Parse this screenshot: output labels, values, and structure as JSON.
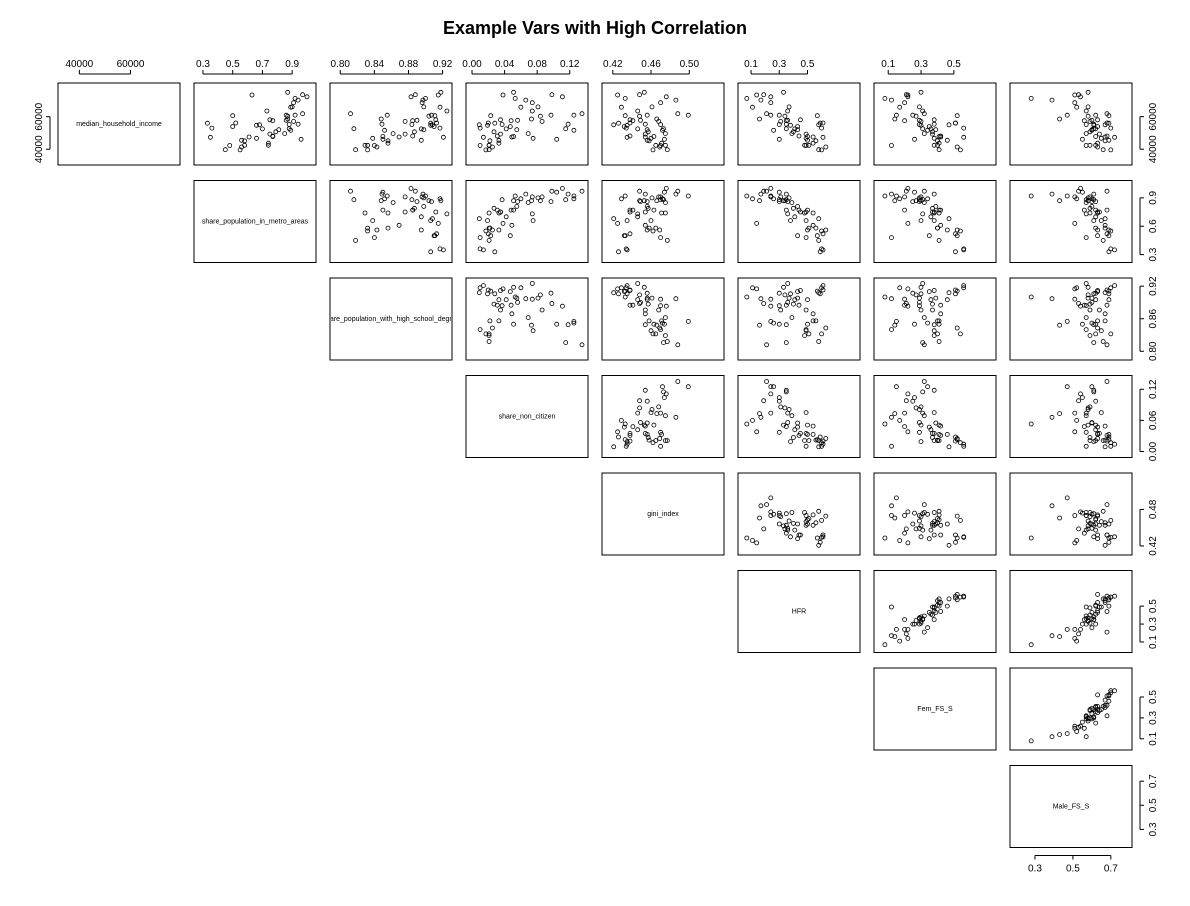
{
  "chart_data": {
    "type": "scatter",
    "title": "Example Vars with High Correlation",
    "variables": [
      {
        "name": "median_household_income",
        "range": [
          34000,
          77000
        ],
        "ticks": [
          40000,
          60000
        ],
        "tick_labels": [
          "40000",
          "60000"
        ]
      },
      {
        "name": "share_population_in_metro_areas",
        "range": [
          0.28,
          1.02
        ],
        "ticks": [
          0.3,
          0.5,
          0.7,
          0.9
        ],
        "tick_labels": [
          "0.3",
          "0.5",
          "0.7",
          "0.9"
        ],
        "ticks_right": [
          0.3,
          0.6,
          0.9
        ],
        "tick_labels_right": [
          "0.3",
          "0.6",
          "0.9"
        ]
      },
      {
        "name": "share_population_with_high_school_degree",
        "range": [
          0.795,
          0.924
        ],
        "ticks": [
          0.8,
          0.84,
          0.88,
          0.92
        ],
        "tick_labels": [
          "0.80",
          "0.84",
          "0.88",
          "0.92"
        ],
        "ticks_right": [
          0.8,
          0.86,
          0.92
        ],
        "tick_labels_right": [
          "0.80",
          "0.86",
          "0.92"
        ]
      },
      {
        "name": "share_non_citizen",
        "range": [
          0.0,
          0.135
        ],
        "ticks": [
          0.0,
          0.04,
          0.08,
          0.12
        ],
        "tick_labels": [
          "0.00",
          "0.04",
          "0.08",
          "0.12"
        ],
        "ticks_right": [
          0.0,
          0.06,
          0.12
        ],
        "tick_labels_right": [
          "0.00",
          "0.06",
          "0.12"
        ]
      },
      {
        "name": "gini_index",
        "range": [
          0.415,
          0.53
        ],
        "ticks": [
          0.42,
          0.46,
          0.5
        ],
        "tick_labels": [
          "0.42",
          "0.46",
          "0.50"
        ],
        "ticks_right": [
          0.42,
          0.48
        ],
        "tick_labels_right": [
          "0.42",
          "0.48"
        ]
      },
      {
        "name": "HFR",
        "range": [
          0.05,
          0.83
        ],
        "ticks": [
          0.1,
          0.3,
          0.5
        ],
        "tick_labels": [
          "0.1",
          "0.3",
          "0.5"
        ],
        "ticks_right": [
          0.1,
          0.3,
          0.5
        ],
        "tick_labels_right": [
          "0.1",
          "0.3",
          "0.5"
        ]
      },
      {
        "name": "Fem_FS_S",
        "range": [
          0.05,
          0.72
        ],
        "ticks": [
          0.1,
          0.3,
          0.5
        ],
        "tick_labels": [
          "0.1",
          "0.3",
          "0.5"
        ],
        "ticks_right": [
          0.1,
          0.3,
          0.5
        ],
        "tick_labels_right": [
          "0.1",
          "0.3",
          "0.5"
        ]
      },
      {
        "name": "Male_FS_S",
        "range": [
          0.2,
          0.78
        ],
        "ticks": [
          0.3,
          0.5,
          0.7
        ],
        "tick_labels": [
          "0.3",
          "0.5",
          "0.7"
        ],
        "ticks_right": [
          0.3,
          0.5,
          0.7
        ],
        "tick_labels_right": [
          "0.3",
          "0.5",
          "0.7"
        ]
      }
    ],
    "points": [
      [
        42300,
        0.48,
        0.84,
        0.01,
        0.47,
        0.49,
        0.12,
        0.57
      ],
      [
        75000,
        0.87,
        0.918,
        0.051,
        0.453,
        0.33,
        0.3,
        0.58
      ],
      [
        51600,
        0.89,
        0.852,
        0.125,
        0.472,
        0.26,
        0.34,
        0.6
      ],
      [
        41400,
        0.56,
        0.843,
        0.025,
        0.469,
        0.63,
        0.52,
        0.63
      ],
      [
        61800,
        0.97,
        0.812,
        0.135,
        0.488,
        0.21,
        0.32,
        0.68
      ],
      [
        60900,
        0.86,
        0.907,
        0.097,
        0.456,
        0.3,
        0.25,
        0.62
      ],
      [
        70200,
        0.94,
        0.897,
        0.066,
        0.486,
        0.17,
        0.12,
        0.39
      ],
      [
        57500,
        0.77,
        0.885,
        0.048,
        0.441,
        0.35,
        0.2,
        0.56
      ],
      [
        46100,
        0.96,
        0.85,
        0.104,
        0.474,
        0.3,
        0.26,
        0.55
      ],
      [
        49600,
        0.85,
        0.862,
        0.069,
        0.475,
        0.39,
        0.32,
        0.57
      ],
      [
        71200,
        0.92,
        0.9,
        0.053,
        0.433,
        0.07,
        0.08,
        0.28
      ],
      [
        45500,
        0.56,
        0.895,
        0.033,
        0.456,
        0.5,
        0.46,
        0.69
      ],
      [
        57100,
        0.91,
        0.876,
        0.086,
        0.468,
        0.31,
        0.3,
        0.59
      ],
      [
        48100,
        0.77,
        0.885,
        0.031,
        0.438,
        0.44,
        0.42,
        0.68
      ],
      [
        54700,
        0.66,
        0.906,
        0.019,
        0.435,
        0.38,
        0.3,
        0.61
      ],
      [
        52500,
        0.7,
        0.895,
        0.042,
        0.446,
        0.41,
        0.36,
        0.62
      ],
      [
        42400,
        0.58,
        0.832,
        0.021,
        0.465,
        0.51,
        0.4,
        0.62
      ],
      [
        42400,
        0.74,
        0.829,
        0.021,
        0.475,
        0.48,
        0.38,
        0.59
      ],
      [
        55000,
        0.68,
        0.908,
        0.009,
        0.421,
        0.58,
        0.47,
        0.67
      ],
      [
        73500,
        0.97,
        0.888,
        0.098,
        0.448,
        0.19,
        0.21,
        0.53
      ],
      [
        68600,
        0.91,
        0.896,
        0.074,
        0.47,
        0.24,
        0.2,
        0.51
      ],
      [
        52000,
        0.81,
        0.898,
        0.055,
        0.456,
        0.43,
        0.39,
        0.6
      ],
      [
        63500,
        0.73,
        0.925,
        0.074,
        0.446,
        0.36,
        0.31,
        0.57
      ],
      [
        39700,
        0.45,
        0.818,
        0.021,
        0.477,
        0.58,
        0.41,
        0.66
      ],
      [
        49300,
        0.75,
        0.876,
        0.035,
        0.454,
        0.49,
        0.37,
        0.64
      ],
      [
        47300,
        0.35,
        0.921,
        0.014,
        0.435,
        0.61,
        0.56,
        0.72
      ],
      [
        53900,
        0.5,
        0.91,
        0.047,
        0.432,
        0.43,
        0.35,
        0.63
      ],
      [
        55400,
        0.94,
        0.849,
        0.118,
        0.454,
        0.35,
        0.38,
        0.61
      ],
      [
        73300,
        0.63,
        0.915,
        0.038,
        0.425,
        0.14,
        0.22,
        0.51
      ],
      [
        72200,
        1.0,
        0.883,
        0.111,
        0.476,
        0.24,
        0.22,
        0.54
      ],
      [
        46700,
        0.66,
        0.838,
        0.075,
        0.46,
        0.49,
        0.38,
        0.65
      ],
      [
        60900,
        0.92,
        0.855,
        0.125,
        0.499,
        0.24,
        0.15,
        0.47
      ],
      [
        47800,
        0.77,
        0.85,
        0.051,
        0.463,
        0.5,
        0.41,
        0.62
      ],
      [
        60600,
        0.5,
        0.911,
        0.023,
        0.433,
        0.57,
        0.52,
        0.69
      ],
      [
        50700,
        0.79,
        0.887,
        0.027,
        0.457,
        0.4,
        0.37,
        0.59
      ],
      [
        47500,
        0.61,
        0.869,
        0.049,
        0.454,
        0.54,
        0.42,
        0.67
      ],
      [
        57800,
        0.86,
        0.89,
        0.056,
        0.449,
        0.36,
        0.29,
        0.6
      ],
      [
        55200,
        0.88,
        0.884,
        0.037,
        0.47,
        0.3,
        0.29,
        0.57
      ],
      [
        58600,
        0.87,
        0.848,
        0.073,
        0.466,
        0.16,
        0.14,
        0.43
      ],
      [
        45200,
        0.58,
        0.856,
        0.022,
        0.458,
        0.56,
        0.4,
        0.67
      ],
      [
        53000,
        0.36,
        0.917,
        0.01,
        0.434,
        0.6,
        0.56,
        0.7
      ],
      [
        43700,
        0.74,
        0.856,
        0.033,
        0.471,
        0.54,
        0.41,
        0.63
      ],
      [
        52600,
        0.88,
        0.816,
        0.115,
        0.473,
        0.35,
        0.31,
        0.61
      ],
      [
        65800,
        0.89,
        0.917,
        0.06,
        0.429,
        0.11,
        0.17,
        0.52
      ],
      [
        56100,
        0.52,
        0.913,
        0.02,
        0.438,
        0.61,
        0.51,
        0.68
      ],
      [
        66000,
        0.9,
        0.898,
        0.081,
        0.461,
        0.37,
        0.29,
        0.58
      ],
      [
        60300,
        0.87,
        0.904,
        0.084,
        0.448,
        0.34,
        0.27,
        0.58
      ],
      [
        39600,
        0.55,
        0.832,
        0.017,
        0.462,
        0.6,
        0.54,
        0.7
      ],
      [
        58100,
        0.75,
        0.912,
        0.035,
        0.438,
        0.45,
        0.38,
        0.63
      ],
      [
        56000,
        0.33,
        0.906,
        0.028,
        0.426,
        0.59,
        0.51,
        0.69
      ]
    ]
  }
}
